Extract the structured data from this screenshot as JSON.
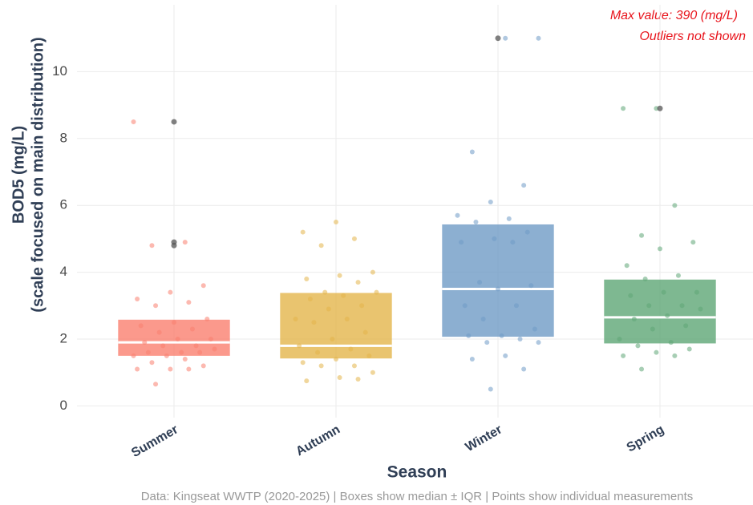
{
  "chart_data": {
    "type": "box",
    "ylabel": [
      "BOD5 (mg/L)",
      "(scale focused on main distribution)"
    ],
    "xlabel": "Season",
    "caption": "Data: Kingseat WWTP (2020-2025) | Boxes show median ± IQR | Points show individual measurements",
    "annotations": [
      "Max value: 390 (mg/L)",
      "Outliers not shown"
    ],
    "categories": [
      "Summer",
      "Autumn",
      "Winter",
      "Spring"
    ],
    "ylim": [
      -0.35,
      12
    ],
    "yticks": [
      0,
      2,
      4,
      6,
      8,
      10
    ],
    "grid": true,
    "series": [
      {
        "name": "Summer",
        "color": "#fa7f6f",
        "q1": 1.5,
        "median": 1.9,
        "q3": 2.58,
        "points": [
          8.5,
          4.9,
          4.8,
          3.6,
          3.4,
          3.2,
          3.1,
          3.0,
          2.6,
          2.5,
          2.4,
          2.3,
          2.2,
          2.0,
          2.0,
          1.9,
          1.8,
          1.8,
          1.7,
          1.6,
          1.6,
          1.6,
          1.5,
          1.5,
          1.4,
          1.3,
          1.2,
          1.1,
          1.1,
          1.1,
          0.65
        ],
        "outliers": [
          8.5,
          4.9,
          4.8
        ]
      },
      {
        "name": "Autumn",
        "color": "#e3b54b",
        "q1": 1.42,
        "median": 1.8,
        "q3": 3.38,
        "points": [
          5.5,
          5.2,
          5.0,
          4.8,
          4.0,
          3.9,
          3.8,
          3.7,
          3.4,
          3.4,
          3.3,
          3.2,
          3.0,
          2.9,
          2.6,
          2.6,
          2.5,
          2.2,
          2.0,
          1.8,
          1.7,
          1.6,
          1.5,
          1.4,
          1.3,
          1.2,
          1.2,
          1.0,
          0.85,
          0.75,
          0.8
        ],
        "outliers": []
      },
      {
        "name": "Winter",
        "color": "#6f9bc6",
        "q1": 2.07,
        "median": 3.5,
        "q3": 5.43,
        "points": [
          11.0,
          11.0,
          7.6,
          6.6,
          6.1,
          5.7,
          5.6,
          5.5,
          5.2,
          5.0,
          4.9,
          4.9,
          3.7,
          3.6,
          3.5,
          3.0,
          3.0,
          2.6,
          2.3,
          2.1,
          2.1,
          2.0,
          1.9,
          1.9,
          1.5,
          1.4,
          1.1,
          0.5
        ],
        "outliers": [
          11.0
        ]
      },
      {
        "name": "Spring",
        "color": "#5ea676",
        "q1": 1.87,
        "median": 2.65,
        "q3": 3.78,
        "points": [
          8.9,
          8.9,
          6.0,
          5.1,
          4.9,
          4.7,
          4.2,
          3.9,
          3.8,
          3.4,
          3.4,
          3.3,
          3.0,
          3.0,
          2.9,
          2.7,
          2.6,
          2.4,
          2.3,
          2.0,
          1.9,
          1.8,
          1.7,
          1.6,
          1.5,
          1.5,
          1.1
        ],
        "outliers": [
          8.9
        ]
      }
    ]
  }
}
